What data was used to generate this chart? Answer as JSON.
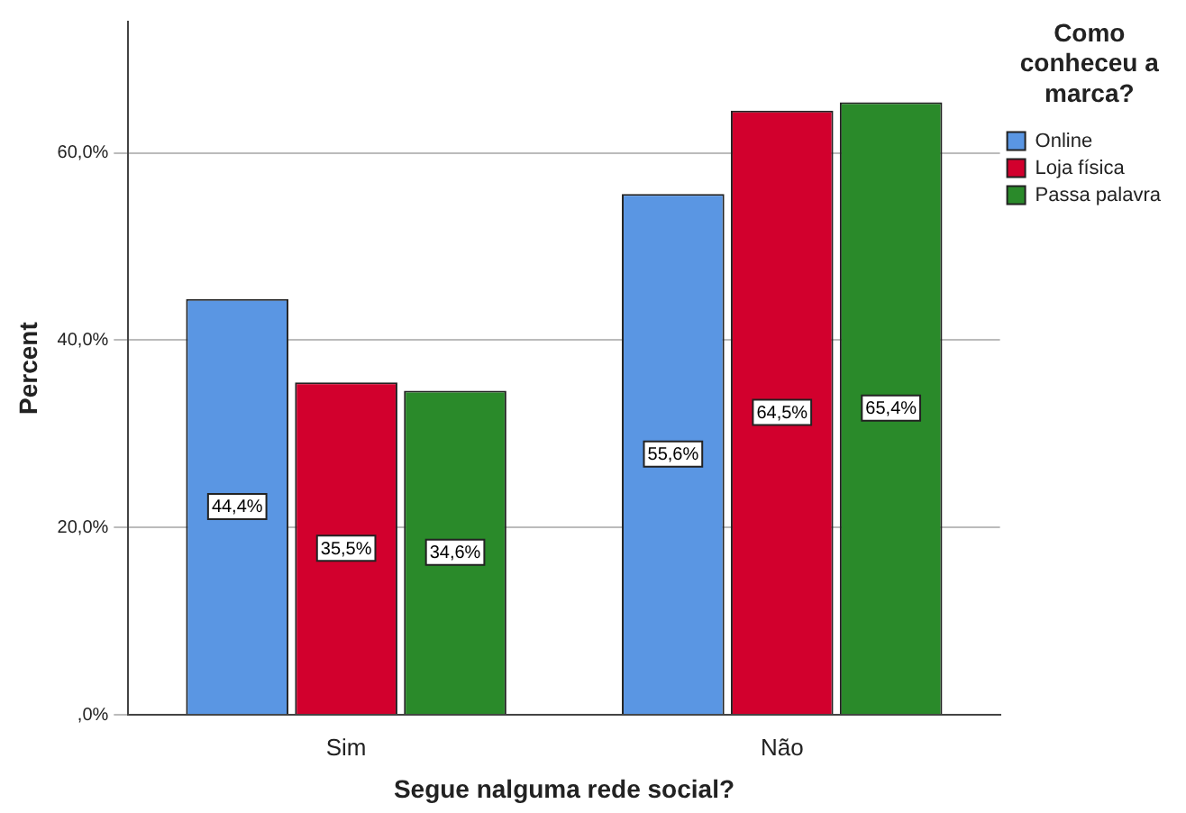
{
  "chart_data": {
    "type": "bar",
    "xlabel": "Segue nalguma rede social?",
    "ylabel": "Percent",
    "legend_title": "Como conheceu a marca?",
    "categories": [
      "Sim",
      "Não"
    ],
    "series": [
      {
        "name": "Online",
        "color": "#5a96e3",
        "values": [
          44.4,
          55.6
        ],
        "value_labels": [
          "44,4%",
          "55,6%"
        ]
      },
      {
        "name": "Loja física",
        "color": "#d2002d",
        "values": [
          35.5,
          64.5
        ],
        "value_labels": [
          "35,5%",
          "64,5%"
        ]
      },
      {
        "name": "Passa palavra",
        "color": "#2a8a2a",
        "values": [
          34.6,
          65.4
        ],
        "value_labels": [
          "34,6%",
          "65,4%"
        ]
      }
    ],
    "ylim": [
      0,
      74
    ],
    "yticks": [
      {
        "value": 0,
        "label": ",0%"
      },
      {
        "value": 20,
        "label": "20,0%"
      },
      {
        "value": 40,
        "label": "40,0%"
      },
      {
        "value": 60,
        "label": "60,0%"
      }
    ],
    "grid": "y",
    "legend": "top right"
  }
}
